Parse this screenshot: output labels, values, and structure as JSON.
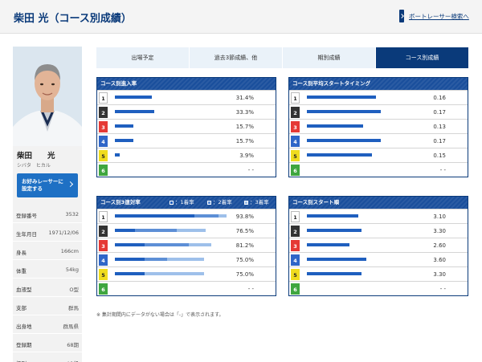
{
  "header": {
    "title": "柴田 光（コース別成績）",
    "back_link": "ボートレーサー検索へ"
  },
  "profile": {
    "name": "柴田　　光",
    "kana": "シバタ　ヒカル",
    "favorite_button": "お好みレーサーに\n設定する",
    "info": [
      {
        "label": "登録番号",
        "value": "3532"
      },
      {
        "label": "生年月日",
        "value": "1971/12/06"
      },
      {
        "label": "身長",
        "value": "166cm"
      },
      {
        "label": "体重",
        "value": "54kg"
      },
      {
        "label": "血液型",
        "value": "O型"
      },
      {
        "label": "支部",
        "value": "群馬"
      },
      {
        "label": "出身地",
        "value": "群馬県"
      },
      {
        "label": "登録期",
        "value": "68期"
      },
      {
        "label": "級別",
        "value": "A1級"
      }
    ]
  },
  "tabs": [
    {
      "label": "出場予定",
      "active": false
    },
    {
      "label": "過去3節成績、他",
      "active": false
    },
    {
      "label": "期別成績",
      "active": false
    },
    {
      "label": "コース別成績",
      "active": true
    }
  ],
  "lane_colors": [
    {
      "bg": "#ffffff",
      "fg": "#222222",
      "border": "#bbbbbb"
    },
    {
      "bg": "#333333",
      "fg": "#ffffff",
      "border": "#333333"
    },
    {
      "bg": "#e53935",
      "fg": "#ffffff",
      "border": "#e53935"
    },
    {
      "bg": "#2f66c8",
      "fg": "#ffffff",
      "border": "#2f66c8"
    },
    {
      "bg": "#f0dc1e",
      "fg": "#222222",
      "border": "#f0dc1e"
    },
    {
      "bg": "#3fa63f",
      "fg": "#ffffff",
      "border": "#3fa63f"
    }
  ],
  "colors": {
    "bar_dark": "#1f5fbf",
    "bar_mid": "#5d8fd6",
    "bar_light": "#9ec0ea",
    "navy": "#0a3a7a"
  },
  "panels": {
    "entry_rate": {
      "title": "コース別進入率",
      "rows": [
        {
          "lane": "1",
          "value": "31.4%",
          "pct": 31.4
        },
        {
          "lane": "2",
          "value": "33.3%",
          "pct": 33.3
        },
        {
          "lane": "3",
          "value": "15.7%",
          "pct": 15.7
        },
        {
          "lane": "4",
          "value": "15.7%",
          "pct": 15.7
        },
        {
          "lane": "5",
          "value": "3.9%",
          "pct": 3.9
        },
        {
          "lane": "6",
          "value": "- -",
          "pct": null
        }
      ]
    },
    "start_timing": {
      "title": "コース別平均スタートタイミング",
      "rows": [
        {
          "lane": "1",
          "value": "0.16",
          "num": 0.16
        },
        {
          "lane": "2",
          "value": "0.17",
          "num": 0.17
        },
        {
          "lane": "3",
          "value": "0.13",
          "num": 0.13
        },
        {
          "lane": "4",
          "value": "0.17",
          "num": 0.17
        },
        {
          "lane": "5",
          "value": "0.15",
          "num": 0.15
        },
        {
          "lane": "6",
          "value": "- -",
          "num": null
        }
      ]
    },
    "place_rate": {
      "title": "コース別3連対率",
      "legend": [
        "：1着率",
        "：2着率",
        "：3着率"
      ],
      "rows": [
        {
          "lane": "1",
          "value": "93.8%",
          "total": 93.8,
          "first": 67,
          "second": 20,
          "third": 6.8
        },
        {
          "lane": "2",
          "value": "76.5%",
          "total": 76.5,
          "first": 17,
          "second": 35,
          "third": 24.5
        },
        {
          "lane": "3",
          "value": "81.2%",
          "total": 81.2,
          "first": 25,
          "second": 37,
          "third": 19.2
        },
        {
          "lane": "4",
          "value": "75.0%",
          "total": 75.0,
          "first": 25,
          "second": 19,
          "third": 31
        },
        {
          "lane": "5",
          "value": "75.0%",
          "total": 75.0,
          "first": 25,
          "second": 0,
          "third": 50
        },
        {
          "lane": "6",
          "value": "- -",
          "total": null,
          "first": 0,
          "second": 0,
          "third": 0
        }
      ]
    },
    "start_order": {
      "title": "コース別スタート順",
      "rows": [
        {
          "lane": "1",
          "value": "3.10",
          "num": 3.1
        },
        {
          "lane": "2",
          "value": "3.30",
          "num": 3.3
        },
        {
          "lane": "3",
          "value": "2.60",
          "num": 2.6
        },
        {
          "lane": "4",
          "value": "3.60",
          "num": 3.6
        },
        {
          "lane": "5",
          "value": "3.30",
          "num": 3.3
        },
        {
          "lane": "6",
          "value": "- -",
          "num": null
        }
      ]
    }
  },
  "note": "※ 集計期間内にデータがない場合は「-」で表示されます。"
}
